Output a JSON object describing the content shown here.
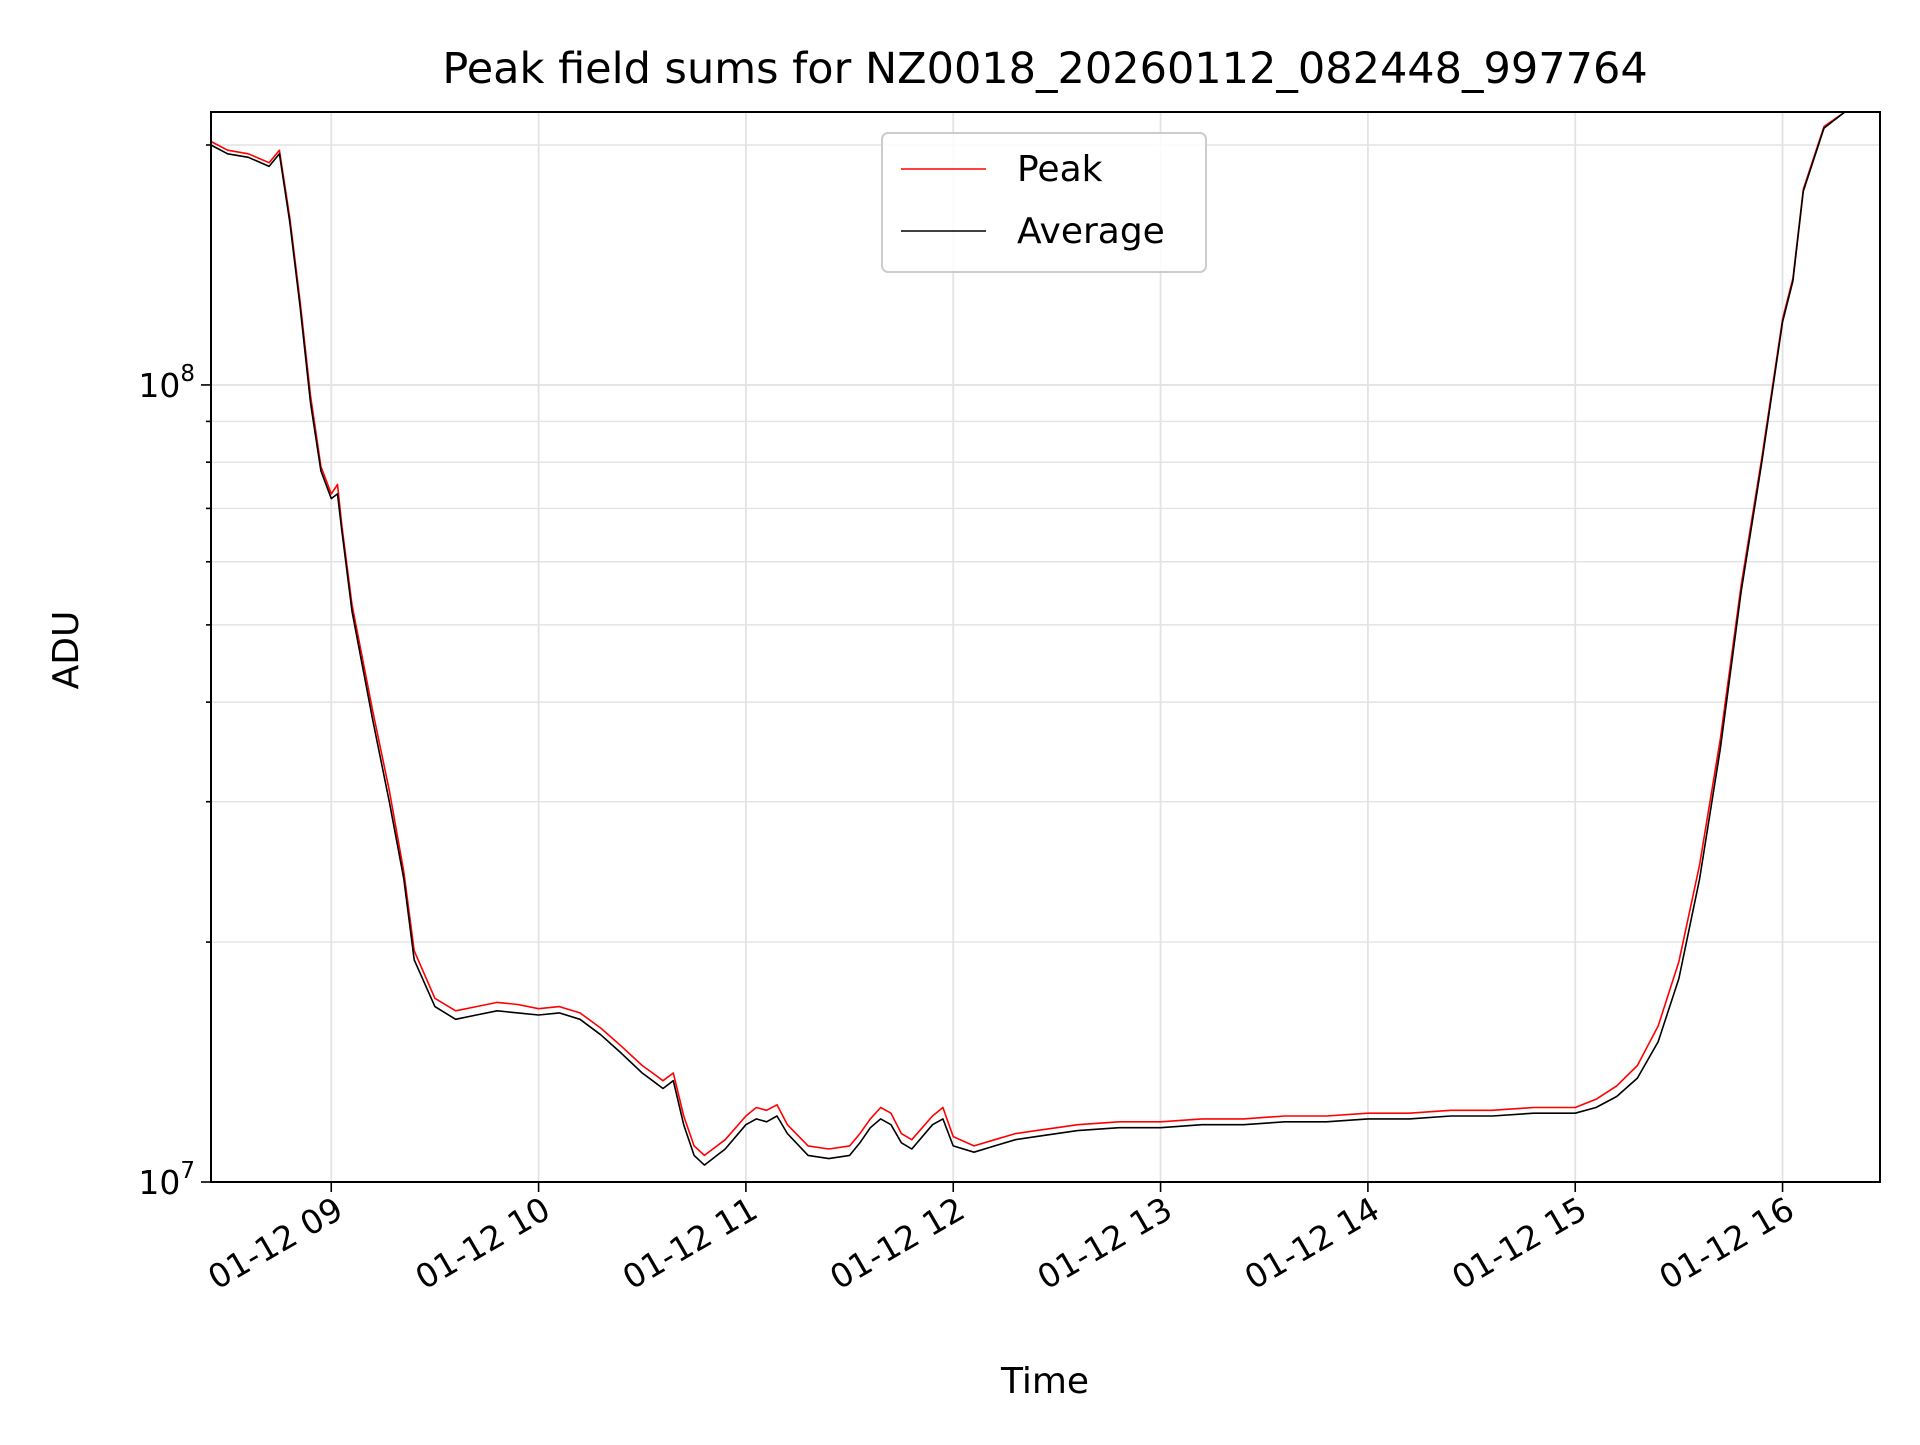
{
  "chart_data": {
    "type": "line",
    "title": "Peak field sums for NZ0018_20260112_082448_997764",
    "xlabel": "Time",
    "ylabel": "ADU",
    "yscale": "log",
    "ylim": [
      10000000,
      220000000
    ],
    "xlim_hours": [
      8.42,
      16.47
    ],
    "x_tick_labels": [
      "01-12 09",
      "01-12 10",
      "01-12 11",
      "01-12 12",
      "01-12 13",
      "01-12 14",
      "01-12 15",
      "01-12 16"
    ],
    "x_tick_hours": [
      9,
      10,
      11,
      12,
      13,
      14,
      15,
      16
    ],
    "y_tick_labels": [
      {
        "base": "10",
        "exp": "7",
        "value": 10000000
      },
      {
        "base": "10",
        "exp": "8",
        "value": 100000000
      }
    ],
    "grid": true,
    "legend_position": "top-center",
    "series": [
      {
        "name": "Peak",
        "color": "#ff0000"
      },
      {
        "name": "Average",
        "color": "#000000"
      }
    ],
    "x_hours": [
      8.42,
      8.5,
      8.6,
      8.7,
      8.75,
      8.8,
      8.85,
      8.9,
      8.95,
      9.0,
      9.03,
      9.05,
      9.1,
      9.2,
      9.28,
      9.35,
      9.4,
      9.5,
      9.6,
      9.7,
      9.8,
      9.9,
      10.0,
      10.1,
      10.2,
      10.3,
      10.4,
      10.5,
      10.55,
      10.6,
      10.65,
      10.7,
      10.75,
      10.8,
      10.9,
      11.0,
      11.05,
      11.1,
      11.15,
      11.2,
      11.3,
      11.4,
      11.5,
      11.55,
      11.6,
      11.65,
      11.7,
      11.75,
      11.8,
      11.9,
      11.95,
      12.0,
      12.1,
      12.2,
      12.3,
      12.4,
      12.5,
      12.6,
      12.8,
      13.0,
      13.2,
      13.4,
      13.6,
      13.8,
      14.0,
      14.2,
      14.4,
      14.6,
      14.8,
      15.0,
      15.1,
      15.2,
      15.3,
      15.4,
      15.5,
      15.6,
      15.7,
      15.8,
      15.9,
      16.0,
      16.05,
      16.1,
      16.2,
      16.3,
      16.47
    ],
    "average_adu": [
      200000000,
      195000000,
      193000000,
      188000000,
      195000000,
      160000000,
      125000000,
      95000000,
      78000000,
      72000000,
      73000000,
      66000000,
      52000000,
      38000000,
      30000000,
      24000000,
      19000000,
      16600000,
      16000000,
      16200000,
      16400000,
      16300000,
      16200000,
      16300000,
      16000000,
      15300000,
      14500000,
      13700000,
      13400000,
      13100000,
      13400000,
      11800000,
      10800000,
      10500000,
      11000000,
      11800000,
      12000000,
      11900000,
      12100000,
      11500000,
      10800000,
      10700000,
      10800000,
      11200000,
      11700000,
      12000000,
      11800000,
      11200000,
      11000000,
      11800000,
      12000000,
      11100000,
      10900000,
      11100000,
      11300000,
      11400000,
      11500000,
      11600000,
      11700000,
      11700000,
      11800000,
      11800000,
      11900000,
      11900000,
      12000000,
      12000000,
      12100000,
      12100000,
      12200000,
      12200000,
      12400000,
      12800000,
      13500000,
      15000000,
      18000000,
      24000000,
      35000000,
      55000000,
      80000000,
      120000000,
      135000000,
      175000000,
      210000000,
      220000000,
      220000000
    ],
    "peak_adu": [
      202000000,
      197000000,
      195000000,
      190000000,
      197000000,
      162000000,
      127000000,
      97000000,
      79000000,
      73000000,
      75000000,
      67000000,
      53000000,
      39000000,
      31000000,
      24500000,
      19500000,
      17000000,
      16400000,
      16600000,
      16800000,
      16700000,
      16500000,
      16600000,
      16300000,
      15600000,
      14800000,
      14000000,
      13700000,
      13400000,
      13700000,
      12100000,
      11100000,
      10800000,
      11300000,
      12100000,
      12400000,
      12300000,
      12500000,
      11800000,
      11100000,
      11000000,
      11100000,
      11500000,
      12000000,
      12400000,
      12200000,
      11500000,
      11300000,
      12100000,
      12400000,
      11400000,
      11100000,
      11300000,
      11500000,
      11600000,
      11700000,
      11800000,
      11900000,
      11900000,
      12000000,
      12000000,
      12100000,
      12100000,
      12200000,
      12200000,
      12300000,
      12300000,
      12400000,
      12400000,
      12700000,
      13200000,
      14000000,
      15700000,
      18900000,
      25000000,
      36000000,
      56000000,
      81000000,
      121000000,
      136000000,
      176000000,
      211000000,
      220000000,
      220000000
    ]
  }
}
